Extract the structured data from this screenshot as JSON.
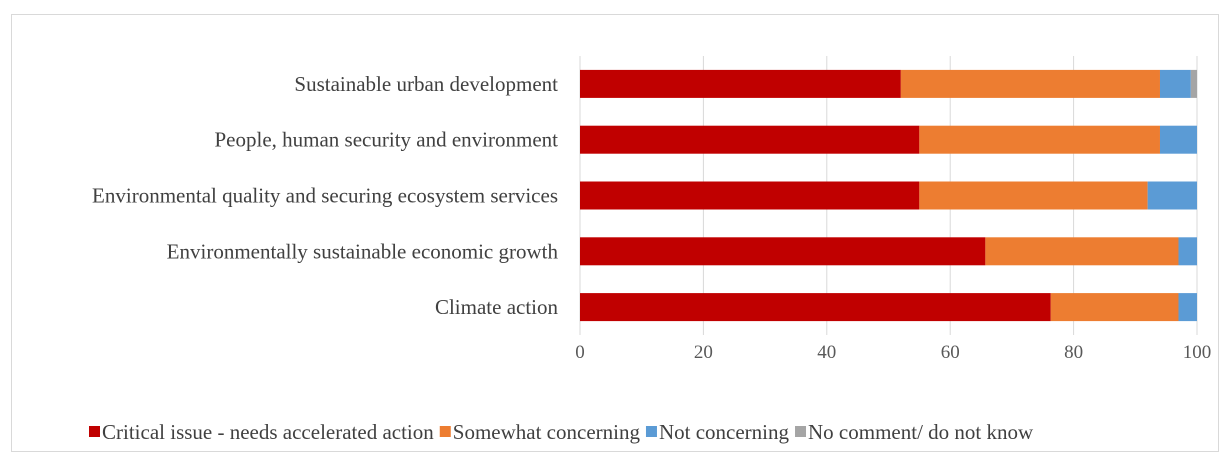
{
  "chart_data": {
    "type": "bar",
    "orientation": "horizontal",
    "stacked": true,
    "categories": [
      "Sustainable urban development",
      "People, human security and environment",
      "Environmental quality and securing ecosystem services",
      "Environmentally sustainable economic growth",
      "Climate action"
    ],
    "series": [
      {
        "name": "Critical issue - needs accelerated action",
        "color": "#c00000",
        "values": [
          52,
          55,
          55,
          65.7,
          76.3
        ]
      },
      {
        "name": "Somewhat concerning",
        "color": "#ed7d31",
        "values": [
          42,
          39,
          37,
          31.3,
          20.7
        ]
      },
      {
        "name": "Not concerning",
        "color": "#5b9bd5",
        "values": [
          5,
          6,
          8,
          3,
          3
        ]
      },
      {
        "name": "No comment/ do not know",
        "color": "#a5a5a5",
        "values": [
          1,
          0,
          0,
          0,
          0
        ]
      }
    ],
    "xlim": [
      0,
      100
    ],
    "xticks": [
      0,
      20,
      40,
      60,
      80,
      100
    ],
    "grid": true,
    "legend_position": "bottom"
  }
}
